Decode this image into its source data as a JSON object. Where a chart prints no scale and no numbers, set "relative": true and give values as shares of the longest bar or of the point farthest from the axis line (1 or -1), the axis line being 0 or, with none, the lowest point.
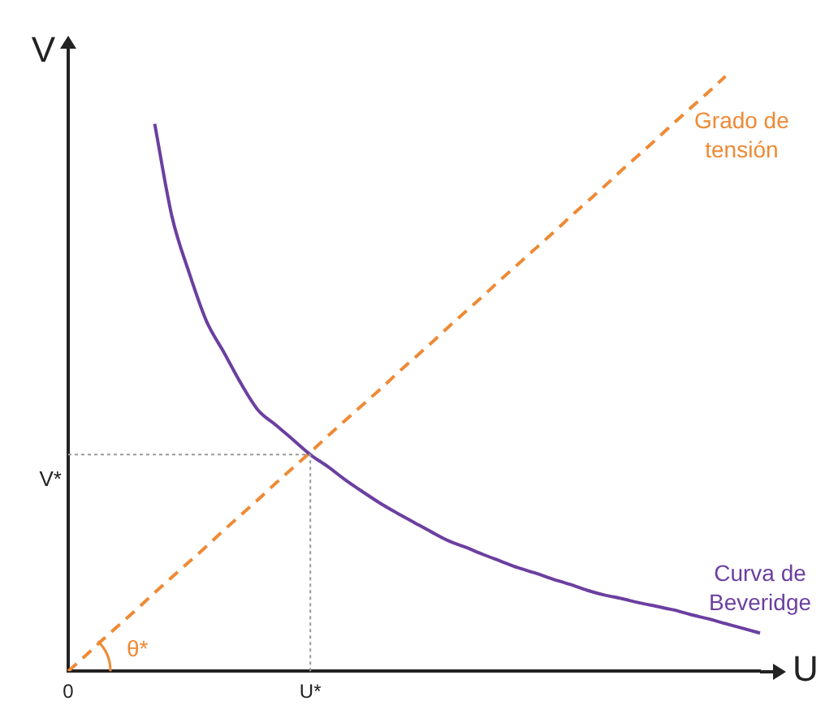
{
  "chart_data": {
    "type": "line",
    "relative": true,
    "xlabel": "U",
    "ylabel": "V",
    "grid": false,
    "legend": false,
    "marker": "none",
    "categories": [
      "0",
      null,
      null,
      null,
      null,
      null,
      null,
      null,
      null,
      null,
      null,
      null,
      null,
      null,
      "U*",
      null,
      null,
      null,
      null,
      null,
      null,
      null,
      null,
      null,
      null,
      null,
      null,
      null,
      null,
      null,
      null,
      null,
      null,
      null,
      null,
      null,
      null,
      null,
      null,
      null,
      null
    ],
    "series": [
      {
        "name": "Curva de Beveridge",
        "color": "#6b3fa0",
        "line_style": "solid",
        "values": [
          null,
          null,
          null,
          null,
          null,
          0.92,
          0.764,
          0.669,
          0.588,
          0.536,
          0.483,
          0.438,
          0.414,
          0.389,
          0.364,
          0.344,
          0.322,
          0.302,
          0.283,
          0.266,
          0.25,
          0.234,
          0.219,
          0.208,
          0.196,
          0.185,
          0.174,
          0.165,
          0.155,
          0.146,
          0.136,
          0.128,
          0.122,
          0.115,
          0.109,
          0.103,
          0.095,
          0.088,
          0.08,
          0.072,
          0.064
        ]
      },
      {
        "name": "Grado de tensión",
        "color": "#ee8a35",
        "line_style": "dashed",
        "values": [
          0,
          0.026,
          0.053,
          0.079,
          0.105,
          0.132,
          0.158,
          0.184,
          0.21,
          0.237,
          0.263,
          0.289,
          0.316,
          0.342,
          0.368,
          0.395,
          0.421,
          0.447,
          0.473,
          0.5,
          0.526,
          0.552,
          0.579,
          0.605,
          0.631,
          0.658,
          0.684,
          0.71,
          0.736,
          0.763,
          0.789,
          0.815,
          0.842,
          0.868,
          0.894,
          0.921,
          0.947,
          0.973,
          1.0,
          null,
          null
        ]
      }
    ],
    "ref_lines": [
      {
        "axis": "y",
        "value": 0.364,
        "label": "V*",
        "line_style": "dotted",
        "color": "#999999"
      },
      {
        "axis": "x",
        "value": "U*",
        "line_style": "dotted",
        "color": "#999999"
      }
    ],
    "annotations": [
      "θ*"
    ]
  }
}
